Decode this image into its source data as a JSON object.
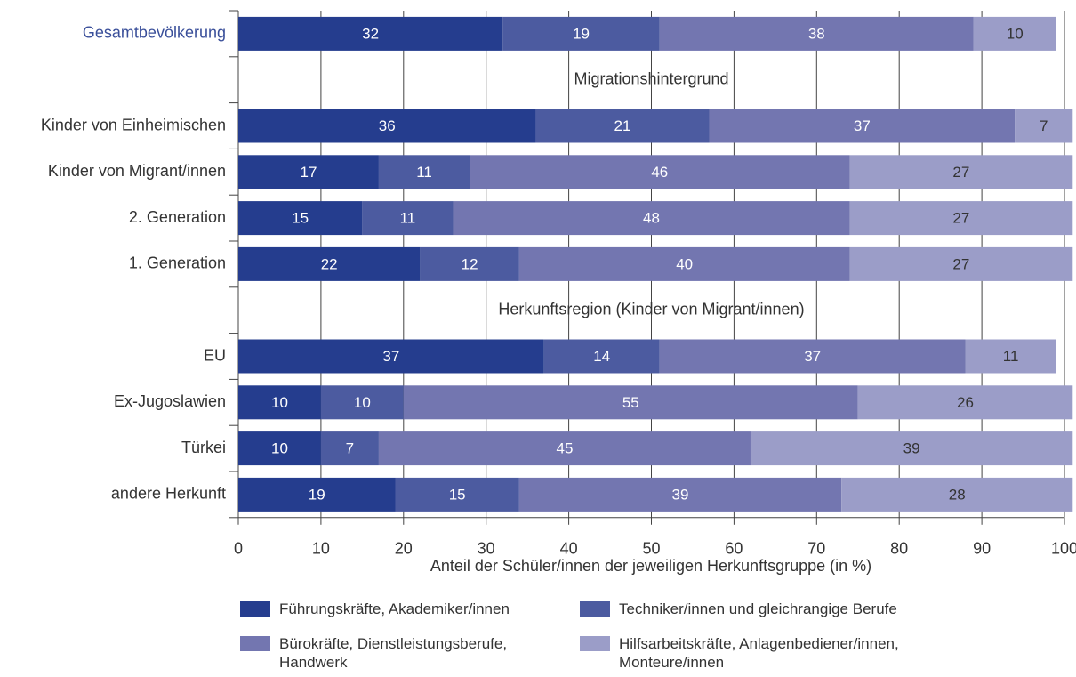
{
  "chart_data": {
    "type": "stacked-barh",
    "categories": [
      "Gesamtbevölkerung",
      null,
      "Kinder von Einheimischen",
      "Kinder von Migrant/innen",
      "2. Generation",
      "1. Generation",
      null,
      "EU",
      "Ex-Jugoslawien",
      "Türkei",
      "andere Herkunft"
    ],
    "category_label_colors": [
      "#3a4f9a",
      null,
      "#333333",
      "#333333",
      "#333333",
      "#333333",
      null,
      "#333333",
      "#333333",
      "#333333",
      "#333333"
    ],
    "section_labels": [
      null,
      "Migrationshintergrund",
      null,
      null,
      null,
      null,
      "Herkunftsregion (Kinder von Migrant/innen)",
      null,
      null,
      null,
      null
    ],
    "series": [
      {
        "name": "Führungskräfte, Akademiker/innen",
        "color": "#253d8e",
        "label_color": "#ffffff",
        "values": [
          32,
          null,
          36,
          17,
          15,
          22,
          null,
          37,
          10,
          10,
          19
        ]
      },
      {
        "name": "Techniker/innen und gleichrangige Berufe",
        "color": "#4c5ba0",
        "label_color": "#ffffff",
        "values": [
          19,
          null,
          21,
          11,
          11,
          12,
          null,
          14,
          10,
          7,
          15
        ]
      },
      {
        "name": "Bürokräfte, Dienstleistungsberufe, Handwerk",
        "color": "#7376b0",
        "label_color": "#ffffff",
        "values": [
          38,
          null,
          37,
          46,
          48,
          40,
          null,
          37,
          55,
          45,
          39
        ]
      },
      {
        "name": "Hilfsarbeitskräfte, Anlagenbediener/innen, Monteure/innen",
        "color": "#9b9dc8",
        "label_color": "#333333",
        "values": [
          10,
          null,
          7,
          27,
          27,
          27,
          null,
          11,
          26,
          39,
          28
        ]
      }
    ],
    "xlabel": "Anteil der Schüler/innen der jeweiligen Herkunftsgruppe (in %)",
    "xlim": [
      0,
      100
    ],
    "xticks": [
      0,
      10,
      20,
      30,
      40,
      50,
      60,
      70,
      80,
      90,
      100
    ],
    "grid": true
  }
}
